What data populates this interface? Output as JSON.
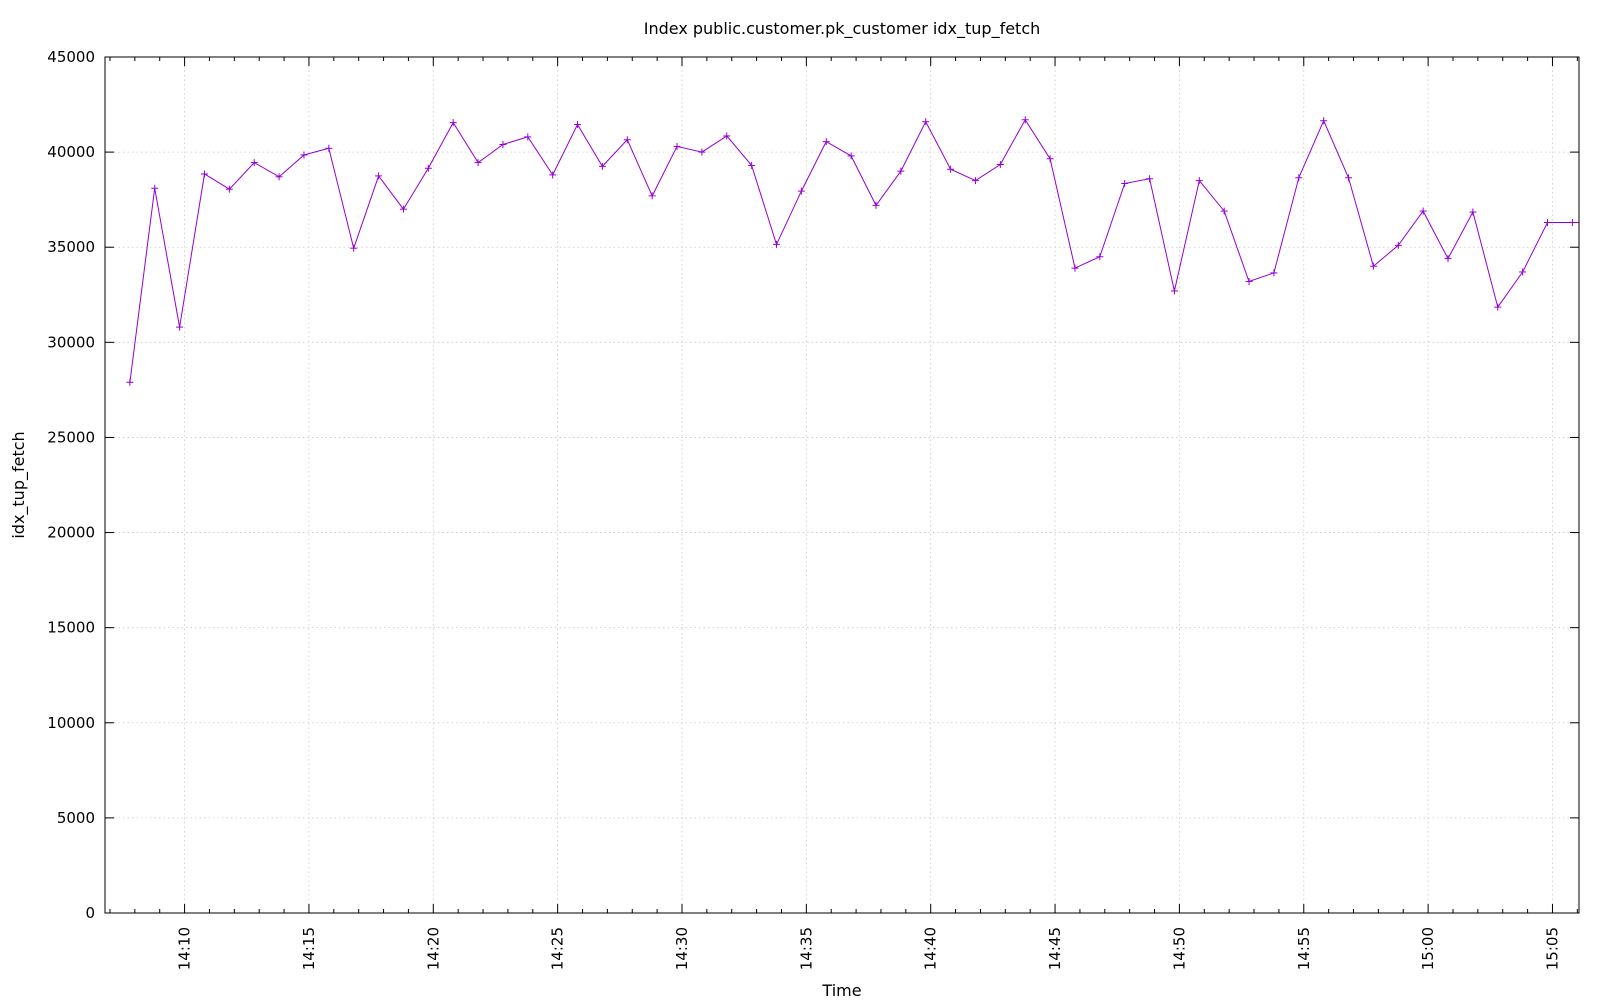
{
  "chart_data": {
    "type": "line",
    "title": "Index public.customer.pk_customer idx_tup_fetch",
    "xlabel": "Time",
    "ylabel": "idx_tup_fetch",
    "ylim": [
      0,
      45000
    ],
    "yticks": [
      0,
      5000,
      10000,
      15000,
      20000,
      25000,
      30000,
      35000,
      40000,
      45000
    ],
    "xlim": [
      "14:06:48",
      "15:06:04"
    ],
    "xticks": [
      "14:10",
      "14:15",
      "14:20",
      "14:25",
      "14:30",
      "14:35",
      "14:40",
      "14:45",
      "14:50",
      "14:55",
      "15:00",
      "15:05"
    ],
    "grid": true,
    "legend": "none",
    "series": [
      {
        "color": "#9400d3",
        "marker": "plus",
        "x": [
          "14:07:48",
          "14:08:48",
          "14:09:48",
          "14:10:48",
          "14:11:48",
          "14:12:48",
          "14:13:48",
          "14:14:48",
          "14:15:48",
          "14:16:48",
          "14:17:48",
          "14:18:48",
          "14:19:48",
          "14:20:48",
          "14:21:48",
          "14:22:48",
          "14:23:48",
          "14:24:48",
          "14:25:48",
          "14:26:48",
          "14:27:48",
          "14:28:48",
          "14:29:48",
          "14:30:48",
          "14:31:48",
          "14:32:48",
          "14:33:48",
          "14:34:48",
          "14:35:48",
          "14:36:48",
          "14:37:48",
          "14:38:48",
          "14:39:48",
          "14:40:48",
          "14:41:48",
          "14:42:48",
          "14:43:48",
          "14:44:48",
          "14:45:48",
          "14:46:48",
          "14:47:48",
          "14:48:48",
          "14:49:48",
          "14:50:48",
          "14:51:48",
          "14:52:48",
          "14:53:48",
          "14:54:48",
          "14:55:48",
          "14:56:48",
          "14:57:48",
          "14:58:48",
          "14:59:48",
          "15:00:48",
          "15:01:48",
          "15:02:48",
          "15:03:48",
          "15:04:48",
          "15:05:48"
        ],
        "values": [
          27900,
          38100,
          30800,
          38850,
          38050,
          39450,
          38700,
          39850,
          40200,
          34950,
          38750,
          37000,
          39150,
          41550,
          39450,
          40400,
          40800,
          38800,
          41450,
          39250,
          40650,
          37700,
          40300,
          40000,
          40850,
          39300,
          35150,
          37950,
          40550,
          39800,
          37200,
          39000,
          41600,
          39100,
          38500,
          39350,
          41700,
          39650,
          33900,
          34500,
          38350,
          38600,
          32700,
          38500,
          36900,
          33200,
          33650,
          38650,
          41650,
          38650,
          34000,
          35100,
          36900,
          34400,
          36850,
          31850,
          33700,
          36300,
          36300
        ]
      }
    ]
  }
}
